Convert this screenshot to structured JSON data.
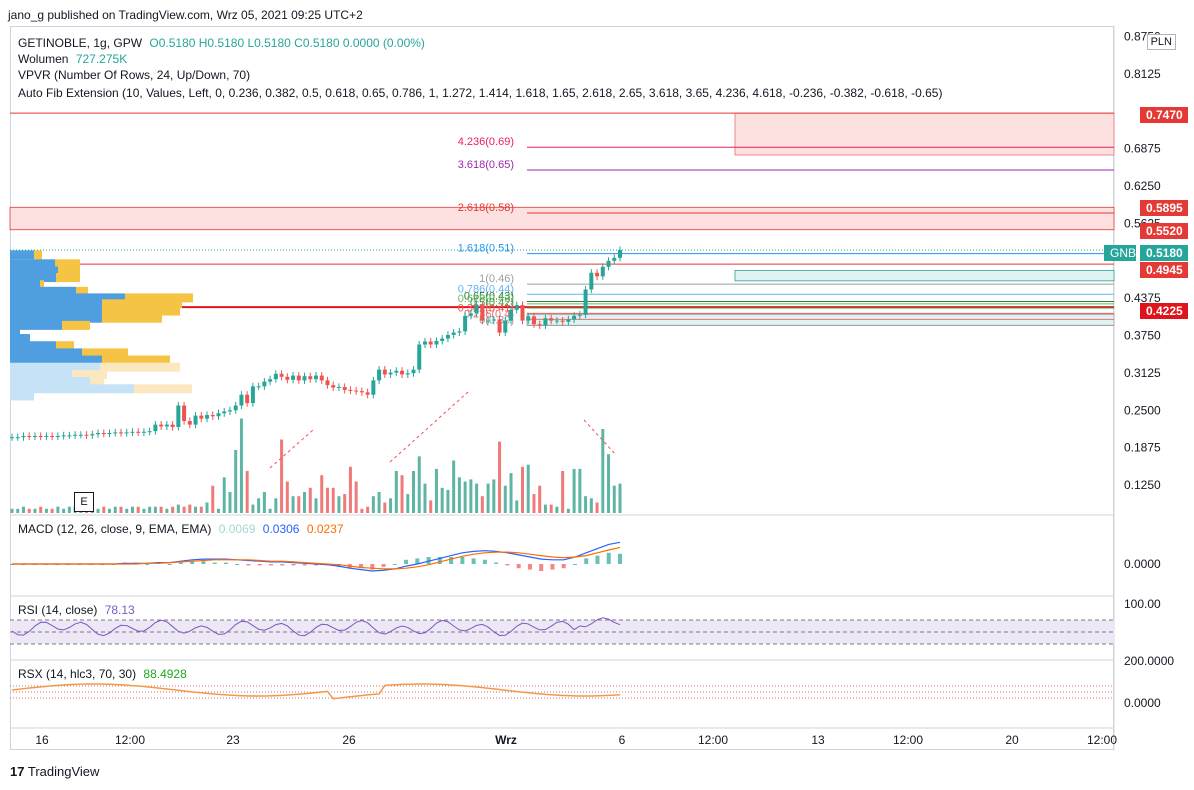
{
  "header": {
    "published_line": "jano_g published on TradingView.com, Wrz 05, 2021 09:25 UTC+2"
  },
  "legend_main": {
    "symbol": "GETINOBLE, 1g, GPW",
    "ohlc": "O0.5180 H0.5180 L0.5180 C0.5180 0.0000 (0.00%)",
    "volume_label": "Wolumen",
    "volume_value": "727.275K",
    "vpvr": "VPVR (Number Of Rows, 24, Up/Down, 70)",
    "fib": "Auto Fib Extension (10, Values, Left, 0, 0.236, 0.382, 0.5, 0.618, 0.65, 0.786, 1, 1.272, 1.414, 1.618, 1.65, 2.618, 2.65, 3.618, 3.65, 4.236, 4.618, -0.236, -0.382, -0.618, -0.65)"
  },
  "legend_macd": {
    "label": "MACD (12, 26, close, 9, EMA, EMA)",
    "hist": "0.0069",
    "macd": "0.0306",
    "signal": "0.0237"
  },
  "legend_rsi": {
    "label": "RSI (14, close)",
    "value": "78.13"
  },
  "legend_rsx": {
    "label": "RSX (14, hlc3, 70, 30)",
    "value": "88.4928"
  },
  "currency_button": "PLN",
  "event_marker": "E",
  "footer": "TradingView",
  "price_tags": {
    "top_zone": "0.7470",
    "upper_zone_top": "0.5895",
    "upper_zone_bottom": "0.5520",
    "symbol_short": "GNB",
    "last": "0.5180",
    "level_4945": "0.4945",
    "level_4225": "0.4225"
  },
  "colors": {
    "up": "#26a69a",
    "down": "#ef5350",
    "vol_up": "#5fb5a4",
    "vol_down": "#ef7a7a",
    "macd": "#2962ff",
    "signal": "#ff6d00",
    "rsi": "#7e57c2",
    "rsx_green": "#21a821",
    "rsx_red": "#e0141b",
    "rsx_orange": "#f2994a",
    "fib_red": "#e53935",
    "fib_pink": "#e91e63",
    "fib_purple": "#9c27b0",
    "fib_blue": "#2196f3",
    "vp_up": "#4f9fe0",
    "vp_down": "#f6c445"
  },
  "chart_data": {
    "type": "candlestick",
    "title": "GETINOBLE, 1g, GPW",
    "price_axis": {
      "ticks": [
        "0.8750",
        "0.8125",
        "0.6875",
        "0.6250",
        "0.5625",
        "0.4375",
        "0.3750",
        "0.3125",
        "0.2500",
        "0.1875",
        "0.1250"
      ],
      "range": [
        0.09,
        0.87
      ]
    },
    "time_axis": {
      "ticks": [
        "16",
        "12:00",
        "23",
        "26",
        "Wrz",
        "6",
        "12:00",
        "13",
        "12:00",
        "20",
        "12:00"
      ]
    },
    "candles_close": [
      0.205,
      0.205,
      0.207,
      0.206,
      0.207,
      0.206,
      0.207,
      0.206,
      0.207,
      0.208,
      0.208,
      0.209,
      0.209,
      0.208,
      0.21,
      0.212,
      0.211,
      0.212,
      0.213,
      0.212,
      0.213,
      0.214,
      0.213,
      0.214,
      0.215,
      0.226,
      0.223,
      0.226,
      0.222,
      0.258,
      0.232,
      0.226,
      0.241,
      0.236,
      0.242,
      0.24,
      0.245,
      0.248,
      0.25,
      0.258,
      0.276,
      0.262,
      0.29,
      0.29,
      0.298,
      0.302,
      0.311,
      0.306,
      0.301,
      0.308,
      0.3,
      0.307,
      0.302,
      0.308,
      0.3,
      0.292,
      0.288,
      0.289,
      0.284,
      0.283,
      0.282,
      0.28,
      0.276,
      0.3,
      0.318,
      0.31,
      0.313,
      0.316,
      0.31,
      0.312,
      0.318,
      0.36,
      0.365,
      0.36,
      0.366,
      0.37,
      0.376,
      0.38,
      0.382,
      0.408,
      0.412,
      0.426,
      0.4,
      0.4,
      0.402,
      0.38,
      0.4,
      0.418,
      0.426,
      0.4,
      0.407,
      0.394,
      0.392,
      0.404,
      0.4,
      0.4,
      0.398,
      0.402,
      0.408,
      0.41,
      0.452,
      0.48,
      0.474,
      0.49,
      0.5,
      0.505,
      0.518
    ],
    "volume": [
      2,
      2,
      3,
      2,
      2,
      3,
      2,
      2,
      3,
      2,
      3,
      3,
      2,
      2,
      3,
      2,
      3,
      2,
      3,
      3,
      2,
      3,
      3,
      2,
      3,
      3,
      3,
      2,
      3,
      4,
      3,
      4,
      3,
      3,
      5,
      13,
      2,
      17,
      10,
      30,
      45,
      20,
      4,
      7,
      10,
      2,
      7,
      35,
      15,
      8,
      8,
      10,
      12,
      7,
      18,
      12,
      12,
      8,
      9,
      22,
      15,
      2,
      3,
      8,
      10,
      5,
      7,
      20,
      18,
      9,
      20,
      27,
      14,
      6,
      21,
      12,
      11,
      25,
      17,
      15,
      16,
      14,
      8,
      14,
      16,
      34,
      13,
      19,
      6,
      22,
      23,
      9,
      13,
      4,
      4,
      3,
      20,
      2,
      21,
      21,
      8,
      7,
      5,
      40,
      28,
      13,
      14
    ],
    "macd": [
      0,
      0,
      0,
      0,
      0,
      0,
      0,
      0,
      0,
      0,
      0.001,
      0.001,
      0.001,
      0.002,
      0.002,
      0.004,
      0.006,
      0.007,
      0.007,
      0.007,
      0.006,
      0.005,
      0.004,
      0.003,
      0.003,
      0.002,
      0.001,
      0,
      -0.001,
      -0.003,
      -0.006,
      -0.008,
      -0.01,
      -0.009,
      -0.007,
      -0.003,
      0,
      0.004,
      0.008,
      0.012,
      0.016,
      0.018,
      0.019,
      0.018,
      0.016,
      0.013,
      0.01,
      0.007,
      0.006,
      0.006,
      0.01,
      0.016,
      0.022,
      0.028,
      0.031
    ],
    "signal": [
      0,
      0,
      0,
      0,
      0,
      0,
      0,
      0,
      0,
      0,
      0,
      0,
      0.001,
      0.001,
      0.002,
      0.003,
      0.004,
      0.005,
      0.006,
      0.006,
      0.006,
      0.006,
      0.005,
      0.004,
      0.004,
      0.003,
      0.002,
      0.001,
      0,
      -0.001,
      -0.003,
      -0.005,
      -0.006,
      -0.007,
      -0.007,
      -0.006,
      -0.004,
      -0.001,
      0.003,
      0.007,
      0.011,
      0.014,
      0.016,
      0.017,
      0.017,
      0.016,
      0.014,
      0.012,
      0.01,
      0.009,
      0.01,
      0.012,
      0.016,
      0.02,
      0.0237
    ],
    "rsi_levels": [
      70,
      50,
      30
    ],
    "fib_labels": [
      "4.236(0.69)",
      "3.618(0.65)",
      "2.618(0.58)",
      "1.618(0.51)",
      "1(0.46)",
      "0.786(0.44)",
      "0.65(0.43)",
      "0.618(0.43)",
      "0.5(0.42)",
      "0.382(0.41)",
      "0.236(0.4)",
      "0(0.39)"
    ],
    "macd_axis": [
      "0.0000"
    ],
    "rsi_axis": [
      "100.00"
    ],
    "rsx_axis": [
      "200.0000",
      "0.0000"
    ]
  }
}
